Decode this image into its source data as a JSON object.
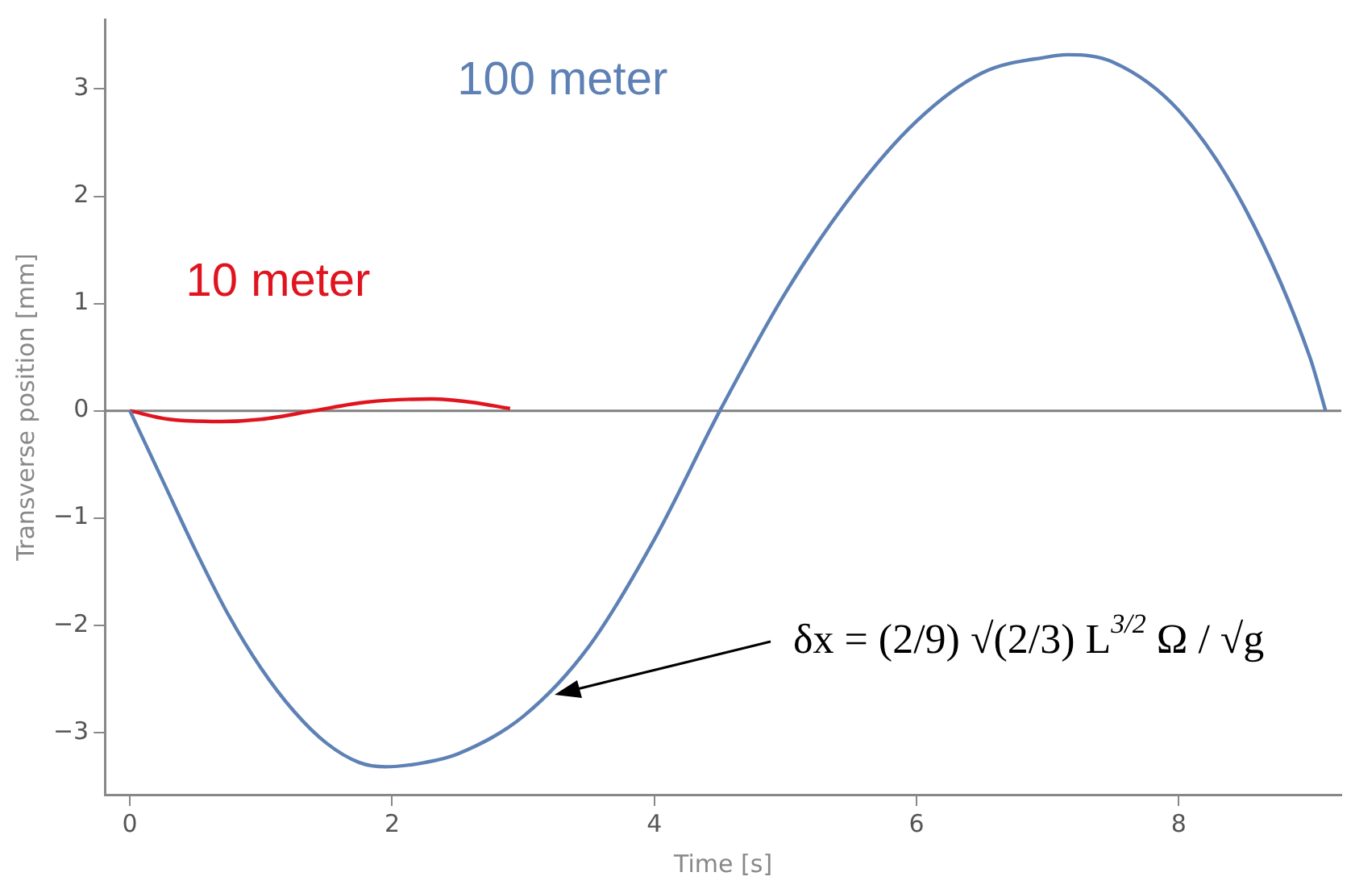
{
  "chart_data": {
    "type": "line",
    "xlabel": "Time [s]",
    "ylabel": "Transverse position [mm]",
    "xlim": [
      -0.19,
      9.24
    ],
    "xticks": [
      0,
      2,
      4,
      6,
      8
    ],
    "ylim": [
      -3.58,
      3.65
    ],
    "yticks": [
      {
        "value": -3,
        "label": "−3"
      },
      {
        "value": -2,
        "label": "−2"
      },
      {
        "value": -1,
        "label": "−1"
      },
      0,
      1,
      2,
      3
    ],
    "grid": false,
    "legend": false,
    "marker": "none",
    "line_style": "solid",
    "ref_lines": [
      {
        "axis": "y",
        "value": 0,
        "color": "#808080"
      }
    ],
    "series": [
      {
        "name": "100 meter",
        "color": "#5e81b5",
        "x": [
          0,
          0.25,
          0.5,
          0.75,
          1,
          1.25,
          1.5,
          1.75,
          1.95,
          2.25,
          2.5,
          3,
          3.5,
          4,
          4.5,
          5,
          5.5,
          6,
          6.5,
          7,
          7.15,
          7.5,
          8,
          8.5,
          9,
          9.12
        ],
        "values": [
          0,
          -0.65,
          -1.3,
          -1.9,
          -2.4,
          -2.8,
          -3.1,
          -3.28,
          -3.32,
          -3.28,
          -3.2,
          -2.85,
          -2.2,
          -1.2,
          0,
          1.1,
          2.0,
          2.7,
          3.15,
          3.3,
          3.32,
          3.25,
          2.8,
          1.9,
          0.5,
          0
        ]
      },
      {
        "name": "10 meter",
        "color": "#e0141e",
        "x": [
          0,
          0.3,
          0.7,
          1.0,
          1.4,
          1.8,
          2.3,
          2.6,
          2.9
        ],
        "values": [
          0,
          -0.08,
          -0.1,
          -0.08,
          0,
          0.08,
          0.11,
          0.08,
          0.02
        ]
      }
    ],
    "annotations": [
      "δx = (2/9) √(2/3) L$^{3/2}$ Ω / √g"
    ]
  }
}
